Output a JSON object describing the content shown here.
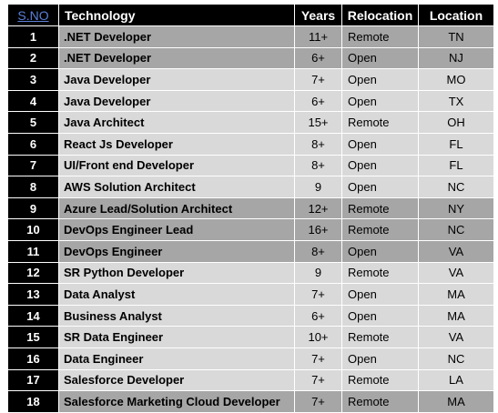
{
  "headers": {
    "sno": "S.NO",
    "technology": "Technology",
    "years": "Years",
    "relocation": "Relocation",
    "location": "Location"
  },
  "rows": [
    {
      "sno": "1",
      "technology": ".NET Developer",
      "years": "11+",
      "relocation": "Remote",
      "location": "TN",
      "shade": "dark"
    },
    {
      "sno": "2",
      "technology": ".NET Developer",
      "years": "6+",
      "relocation": "Open",
      "location": "NJ",
      "shade": "dark"
    },
    {
      "sno": "3",
      "technology": "Java Developer",
      "years": "7+",
      "relocation": "Open",
      "location": "MO",
      "shade": "light"
    },
    {
      "sno": "4",
      "technology": "Java Developer",
      "years": "6+",
      "relocation": "Open",
      "location": "TX",
      "shade": "light"
    },
    {
      "sno": "5",
      "technology": "Java Architect",
      "years": "15+",
      "relocation": "Remote",
      "location": "OH",
      "shade": "light"
    },
    {
      "sno": "6",
      "technology": "React Js Developer",
      "years": "8+",
      "relocation": "Open",
      "location": "FL",
      "shade": "light"
    },
    {
      "sno": "7",
      "technology": "UI/Front end Developer",
      "years": "8+",
      "relocation": "Open",
      "location": "FL",
      "shade": "light"
    },
    {
      "sno": "8",
      "technology": "AWS Solution Architect",
      "years": "9",
      "relocation": "Open",
      "location": "NC",
      "shade": "light"
    },
    {
      "sno": "9",
      "technology": "Azure Lead/Solution Architect",
      "years": "12+",
      "relocation": "Remote",
      "location": "NY",
      "shade": "dark"
    },
    {
      "sno": "10",
      "technology": "DevOps Engineer Lead",
      "years": "16+",
      "relocation": "Remote",
      "location": "NC",
      "shade": "dark"
    },
    {
      "sno": "11",
      "technology": "DevOps Engineer",
      "years": "8+",
      "relocation": "Open",
      "location": "VA",
      "shade": "dark"
    },
    {
      "sno": "12",
      "technology": "SR Python Developer",
      "years": "9",
      "relocation": "Remote",
      "location": "VA",
      "shade": "light"
    },
    {
      "sno": "13",
      "technology": "Data Analyst",
      "years": "7+",
      "relocation": "Open",
      "location": "MA",
      "shade": "light"
    },
    {
      "sno": "14",
      "technology": "Business Analyst",
      "years": "6+",
      "relocation": "Open",
      "location": "MA",
      "shade": "light"
    },
    {
      "sno": "15",
      "technology": "SR Data Engineer",
      "years": "10+",
      "relocation": "Remote",
      "location": "VA",
      "shade": "light"
    },
    {
      "sno": "16",
      "technology": "Data Engineer",
      "years": "7+",
      "relocation": "Open",
      "location": "NC",
      "shade": "light"
    },
    {
      "sno": "17",
      "technology": "Salesforce Developer",
      "years": "7+",
      "relocation": "Remote",
      "location": "LA",
      "shade": "light"
    },
    {
      "sno": "18",
      "technology": "Salesforce Marketing Cloud Developer",
      "years": "7+",
      "relocation": "Remote",
      "location": "MA",
      "shade": "dark"
    }
  ],
  "colors": {
    "header_bg": "#000000",
    "header_text": "#ffffff",
    "sno_link": "#5b7fd6",
    "row_light": "#d9d9d9",
    "row_dark": "#a6a6a6"
  }
}
